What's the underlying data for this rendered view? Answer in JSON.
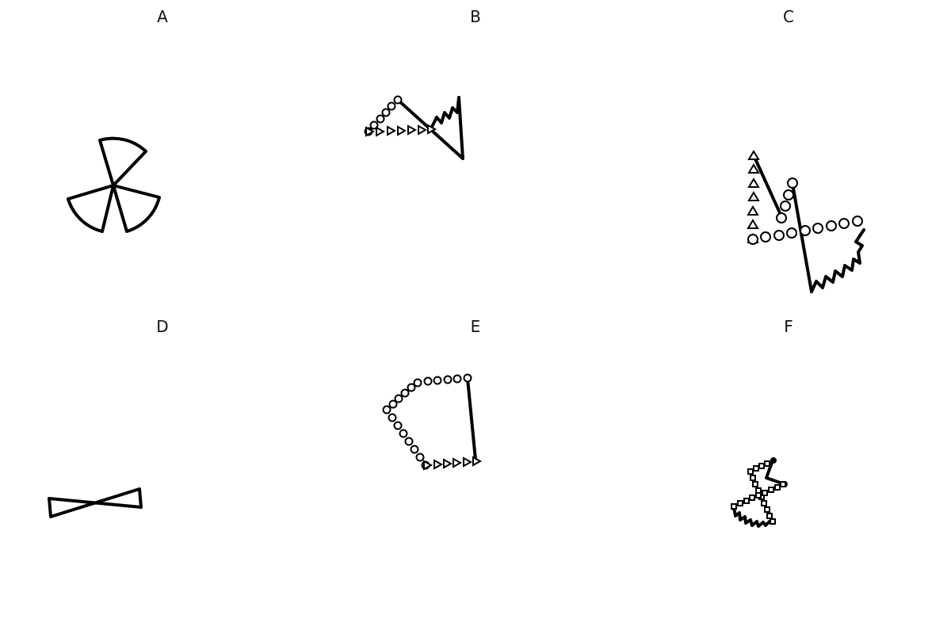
{
  "panels": [
    {
      "id": "A",
      "label": "A"
    },
    {
      "id": "B",
      "label": "B"
    },
    {
      "id": "C",
      "label": "C"
    },
    {
      "id": "D",
      "label": "D"
    },
    {
      "id": "E",
      "label": "E"
    },
    {
      "id": "F",
      "label": "F"
    }
  ],
  "colors": {
    "stroke": "#000000",
    "background": "#ffffff"
  }
}
